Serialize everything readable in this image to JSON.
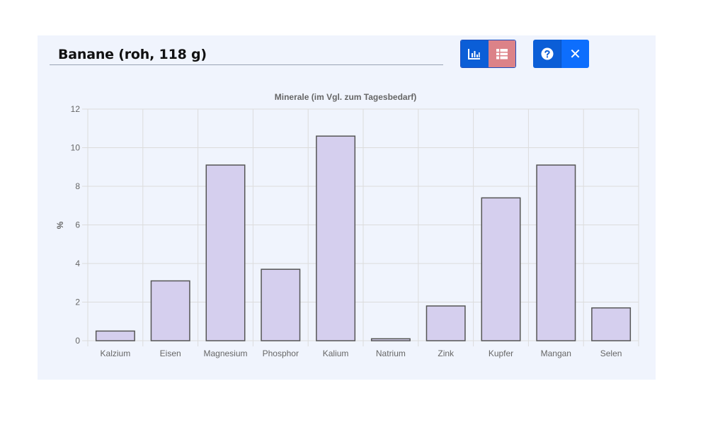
{
  "food_title": "Banane (roh, 118 g)",
  "icons": {
    "chart_view": "bar-chart-icon",
    "table_view": "table-list-icon",
    "help": "question-circle-icon",
    "close": "close-icon"
  },
  "close_glyph": "✕",
  "colors": {
    "bar_fill": "#d5cfee",
    "bar_stroke": "#555555",
    "chart_button": "#0b5ed7",
    "table_button": "#dc8288",
    "panel_background": "#f0f4fd"
  },
  "chart_data": {
    "type": "bar",
    "title": "Minerale (im Vgl. zum Tagesbedarf)",
    "xlabel": "",
    "ylabel": "%",
    "categories": [
      "Kalzium",
      "Eisen",
      "Magnesium",
      "Phosphor",
      "Kalium",
      "Natrium",
      "Zink",
      "Kupfer",
      "Mangan",
      "Selen"
    ],
    "values": [
      0.5,
      3.1,
      9.1,
      3.7,
      10.6,
      0.1,
      1.8,
      7.4,
      9.1,
      1.7
    ],
    "ylim": [
      0,
      12
    ],
    "yticks": [
      0,
      2,
      4,
      6,
      8,
      10,
      12
    ],
    "grid": true,
    "legend": "none"
  }
}
